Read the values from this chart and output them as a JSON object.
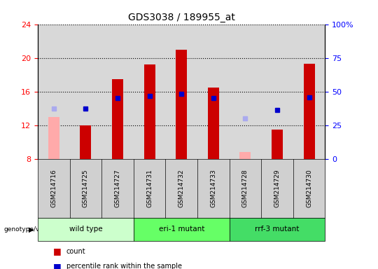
{
  "title": "GDS3038 / 189955_at",
  "samples": [
    "GSM214716",
    "GSM214725",
    "GSM214727",
    "GSM214731",
    "GSM214732",
    "GSM214733",
    "GSM214728",
    "GSM214729",
    "GSM214730"
  ],
  "bar_values": [
    13.0,
    12.0,
    17.5,
    19.2,
    21.0,
    16.5,
    8.8,
    11.5,
    19.3
  ],
  "bar_absent": [
    true,
    false,
    false,
    false,
    false,
    false,
    true,
    false,
    false
  ],
  "rank_values": [
    14.0,
    14.0,
    15.2,
    15.5,
    15.7,
    15.2,
    12.8,
    13.8,
    15.3
  ],
  "rank_absent": [
    true,
    false,
    false,
    false,
    false,
    false,
    true,
    false,
    false
  ],
  "ylim_left": [
    8,
    24
  ],
  "ylim_right": [
    0,
    100
  ],
  "yticks_left": [
    8,
    12,
    16,
    20,
    24
  ],
  "ytick_labels_right": [
    "0",
    "25",
    "50",
    "75",
    "100%"
  ],
  "bar_color_normal": "#cc0000",
  "bar_color_absent": "#ffaaaa",
  "rank_color_normal": "#0000cc",
  "rank_color_absent": "#aaaaee",
  "group_labels": [
    "wild type",
    "eri-1 mutant",
    "rrf-3 mutant"
  ],
  "group_starts": [
    0,
    3,
    6
  ],
  "group_sizes": [
    3,
    3,
    3
  ],
  "group_colors": [
    "#ccffcc",
    "#66ff66",
    "#44dd66"
  ]
}
